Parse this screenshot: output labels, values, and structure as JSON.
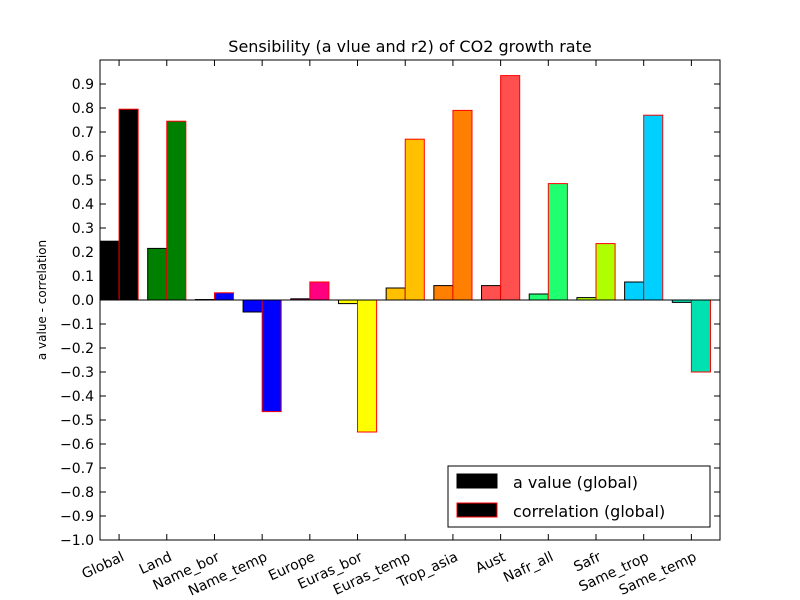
{
  "chart_data": {
    "type": "bar",
    "title": "Sensibility (a vlue and r2) of CO2 growth rate",
    "xlabel": "",
    "ylabel": "a value - correlation",
    "ylim": [
      -1.0,
      1.0
    ],
    "yticks": [
      -1.0,
      -0.9,
      -0.8,
      -0.7,
      -0.6,
      -0.5,
      -0.4,
      -0.3,
      -0.2,
      -0.1,
      0.0,
      0.1,
      0.2,
      0.3,
      0.4,
      0.5,
      0.6,
      0.7,
      0.8,
      0.9
    ],
    "ytick_labels": [
      "−1.0",
      "−0.9",
      "−0.8",
      "−0.7",
      "−0.6",
      "−0.5",
      "−0.4",
      "−0.3",
      "−0.2",
      "−0.1",
      "0.0",
      "0.1",
      "0.2",
      "0.3",
      "0.4",
      "0.5",
      "0.6",
      "0.7",
      "0.8",
      "0.9"
    ],
    "categories": [
      "Global",
      "Land",
      "Name_bor",
      "Name_temp",
      "Europe",
      "Euras_bor",
      "Euras_temp",
      "Trop_asia",
      "Aust",
      "Nafr_all",
      "Safr",
      "Same_trop",
      "Same_temp"
    ],
    "colors": [
      "#000000",
      "#008000",
      "#0000ff",
      "#0000ff",
      "#ff0080",
      "#ffff00",
      "#ffc000",
      "#ff8000",
      "#ff4f4f",
      "#20ff70",
      "#b0ff00",
      "#00d0ff",
      "#00e0b0"
    ],
    "correlation_edgecolor": "#ff0000",
    "grid": false,
    "legend_position": "lower-right",
    "series": [
      {
        "name": "a value (global)",
        "values": [
          0.245,
          0.215,
          0.002,
          -0.05,
          0.005,
          -0.015,
          0.05,
          0.06,
          0.06,
          0.025,
          0.01,
          0.075,
          -0.01
        ]
      },
      {
        "name": "correlation (global)",
        "values": [
          0.795,
          0.745,
          0.03,
          -0.465,
          0.075,
          -0.55,
          0.67,
          0.79,
          0.935,
          0.485,
          0.235,
          0.77,
          -0.3
        ]
      }
    ]
  }
}
